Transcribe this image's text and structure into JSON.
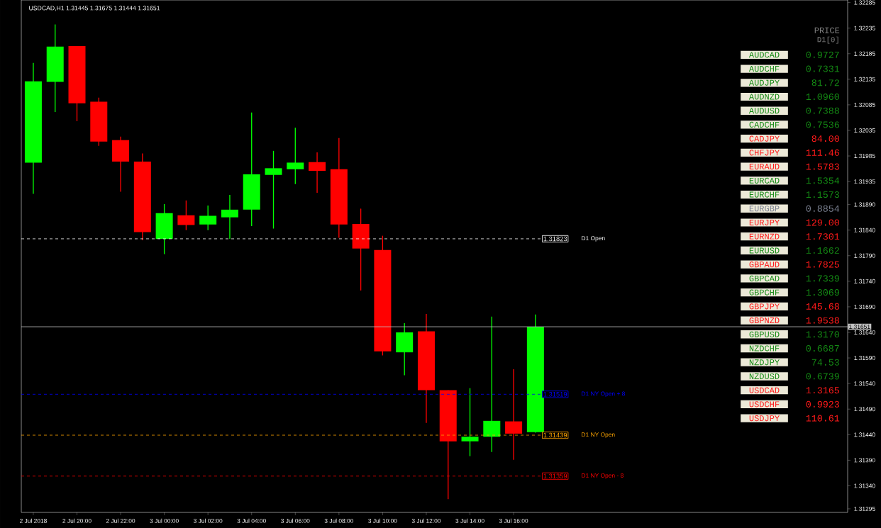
{
  "chart_data": [
    {
      "type": "candlestick",
      "title": "USDCAD,H1  1.31445 1.31675 1.31444 1.31651",
      "x": [
        "2018-07-02T18:00",
        "2018-07-02T19:00",
        "2018-07-02T20:00",
        "2018-07-02T21:00",
        "2018-07-02T22:00",
        "2018-07-02T23:00",
        "2018-07-03T00:00",
        "2018-07-03T01:00",
        "2018-07-03T02:00",
        "2018-07-03T03:00",
        "2018-07-03T04:00",
        "2018-07-03T05:00",
        "2018-07-03T06:00",
        "2018-07-03T07:00",
        "2018-07-03T08:00",
        "2018-07-03T09:00",
        "2018-07-03T10:00",
        "2018-07-03T11:00",
        "2018-07-03T12:00",
        "2018-07-03T13:00",
        "2018-07-03T14:00",
        "2018-07-03T15:00",
        "2018-07-03T16:00",
        "2018-07-03T17:00"
      ],
      "ohlc": [
        [
          1.31972,
          1.32167,
          1.31911,
          1.32131
        ],
        [
          1.3213,
          1.32242,
          1.32071,
          1.32199
        ],
        [
          1.322,
          1.322,
          1.32053,
          1.32088
        ],
        [
          1.32091,
          1.32099,
          1.32005,
          1.32013
        ],
        [
          1.32016,
          1.32023,
          1.31915,
          1.31974
        ],
        [
          1.31974,
          1.3199,
          1.3182,
          1.31836
        ],
        [
          1.31823,
          1.31891,
          1.31793,
          1.31873
        ],
        [
          1.31869,
          1.31898,
          1.3184,
          1.3185
        ],
        [
          1.31851,
          1.31888,
          1.3184,
          1.31868
        ],
        [
          1.31865,
          1.31909,
          1.31823,
          1.3188
        ],
        [
          1.3188,
          1.3207,
          1.31848,
          1.31949
        ],
        [
          1.31948,
          1.31995,
          1.31843,
          1.31961
        ],
        [
          1.31959,
          1.3204,
          1.3193,
          1.31972
        ],
        [
          1.31973,
          1.31992,
          1.31913,
          1.31956
        ],
        [
          1.31959,
          1.3202,
          1.31825,
          1.31851
        ],
        [
          1.31852,
          1.31882,
          1.31722,
          1.31804
        ],
        [
          1.31801,
          1.31829,
          1.31595,
          1.31603
        ],
        [
          1.31601,
          1.31658,
          1.31556,
          1.3164
        ],
        [
          1.31642,
          1.31676,
          1.31463,
          1.31527
        ],
        [
          1.31527,
          1.31527,
          1.31314,
          1.31427
        ],
        [
          1.31427,
          1.31531,
          1.31398,
          1.31436
        ],
        [
          1.31436,
          1.31671,
          1.31406,
          1.31467
        ],
        [
          1.31466,
          1.31568,
          1.31391,
          1.31442
        ],
        [
          1.31445,
          1.31675,
          1.31444,
          1.31651
        ]
      ],
      "colors": [
        "#00ff00",
        "#00ff00",
        "#ff0000",
        "#ff0000",
        "#ff0000",
        "#ff0000",
        "#00ff00",
        "#ff0000",
        "#00ff00",
        "#00ff00",
        "#00ff00",
        "#00ff00",
        "#00ff00",
        "#ff0000",
        "#ff0000",
        "#ff0000",
        "#ff0000",
        "#00ff00",
        "#ff0000",
        "#ff0000",
        "#00ff00",
        "#00ff00",
        "#ff0000",
        "#00ff00"
      ],
      "xlim": [
        "2018-07-02T17:27",
        "2018-07-04T07:18"
      ],
      "ylim": [
        1.31288,
        1.3229
      ],
      "xticks": [
        {
          "value": "2018-07-02T18:00",
          "label": "2 Jul 2018"
        },
        {
          "value": "2018-07-02T20:00",
          "label": "2 Jul 20:00"
        },
        {
          "value": "2018-07-02T22:00",
          "label": "2 Jul 22:00"
        },
        {
          "value": "2018-07-03T00:00",
          "label": "3 Jul 00:00"
        },
        {
          "value": "2018-07-03T02:00",
          "label": "3 Jul 02:00"
        },
        {
          "value": "2018-07-03T04:00",
          "label": "3 Jul 04:00"
        },
        {
          "value": "2018-07-03T06:00",
          "label": "3 Jul 06:00"
        },
        {
          "value": "2018-07-03T08:00",
          "label": "3 Jul 08:00"
        },
        {
          "value": "2018-07-03T10:00",
          "label": "3 Jul 10:00"
        },
        {
          "value": "2018-07-03T12:00",
          "label": "3 Jul 12:00"
        },
        {
          "value": "2018-07-03T14:00",
          "label": "3 Jul 14:00"
        },
        {
          "value": "2018-07-03T16:00",
          "label": "3 Jul 16:00"
        }
      ],
      "yticks": [
        {
          "value": 1.32285,
          "label": "1.32285"
        },
        {
          "value": 1.32235,
          "label": "1.32235"
        },
        {
          "value": 1.32185,
          "label": "1.32185"
        },
        {
          "value": 1.32135,
          "label": "1.32135"
        },
        {
          "value": 1.32085,
          "label": "1.32085"
        },
        {
          "value": 1.32035,
          "label": "1.32035"
        },
        {
          "value": 1.31985,
          "label": "1.31985"
        },
        {
          "value": 1.31935,
          "label": "1.31935"
        },
        {
          "value": 1.3189,
          "label": "1.31890"
        },
        {
          "value": 1.3184,
          "label": "1.31840"
        },
        {
          "value": 1.3179,
          "label": "1.31790"
        },
        {
          "value": 1.3174,
          "label": "1.31740"
        },
        {
          "value": 1.3169,
          "label": "1.31690"
        },
        {
          "value": 1.3164,
          "label": "1.31640"
        },
        {
          "value": 1.3159,
          "label": "1.31590"
        },
        {
          "value": 1.3154,
          "label": "1.31540"
        },
        {
          "value": 1.3149,
          "label": "1.31490"
        },
        {
          "value": 1.3144,
          "label": "1.31440"
        },
        {
          "value": 1.3139,
          "label": "1.31390"
        },
        {
          "value": 1.3134,
          "label": "1.31340"
        },
        {
          "value": 1.31295,
          "label": "1.31295"
        }
      ],
      "ref_lines": [
        {
          "axis": "y",
          "value": 1.31823,
          "label": "D1 Open",
          "color": "#ffffff",
          "line_style": "dashed"
        },
        {
          "axis": "y",
          "value": 1.31519,
          "label": "D1 NY Open + 8",
          "color": "#0000ff",
          "line_style": "dashed"
        },
        {
          "axis": "y",
          "value": 1.31439,
          "label": "D1 NY Open",
          "color": "#ffa500",
          "line_style": "dashed"
        },
        {
          "axis": "y",
          "value": 1.31359,
          "label": "D1 NY Open - 8",
          "color": "#ff0000",
          "line_style": "dashed"
        },
        {
          "axis": "y",
          "value": 1.31651,
          "label": "1.31651",
          "color": "#c0c0c0",
          "line_style": "solid"
        }
      ],
      "annotations": [
        "1.31823",
        "1.31519",
        "1.31439",
        "1.31359"
      ]
    },
    {
      "type": "other",
      "title": "PRICE",
      "subtitle": "D1[0]",
      "categories": [
        "AUDCAD",
        "AUDCHF",
        "AUDJPY",
        "AUDNZD",
        "AUDUSD",
        "CADCHF",
        "CADJPY",
        "CHFJPY",
        "EURAUD",
        "EURCAD",
        "EURCHF",
        "EURGBP",
        "EURJPY",
        "EURNZD",
        "EURUSD",
        "GBPAUD",
        "GBPCAD",
        "GBPCHF",
        "GBPJPY",
        "GBPNZD",
        "GBPUSD",
        "NZDCHF",
        "NZDJPY",
        "NZDUSD",
        "USDCAD",
        "USDCHF",
        "USDJPY"
      ],
      "value_labels": [
        "0.9727",
        "0.7331",
        "81.72",
        "1.0960",
        "0.7388",
        "0.7536",
        "84.00",
        "111.46",
        "1.5783",
        "1.5354",
        "1.1573",
        "0.8854",
        "129.00",
        "1.7301",
        "1.1662",
        "1.7825",
        "1.7339",
        "1.3069",
        "145.68",
        "1.9538",
        "1.3170",
        "0.6687",
        "74.53",
        "0.6739",
        "1.3165",
        "0.9923",
        "110.61"
      ],
      "colors": [
        "#148a14",
        "#148a14",
        "#148a14",
        "#148a14",
        "#148a14",
        "#148a14",
        "#ff1a1a",
        "#ff1a1a",
        "#ff1a1a",
        "#148a14",
        "#148a14",
        "#7a8090",
        "#ff1a1a",
        "#ff1a1a",
        "#148a14",
        "#ff1a1a",
        "#148a14",
        "#148a14",
        "#ff1a1a",
        "#ff1a1a",
        "#148a14",
        "#148a14",
        "#148a14",
        "#148a14",
        "#ff1a1a",
        "#ff1a1a",
        "#ff1a1a"
      ]
    }
  ]
}
